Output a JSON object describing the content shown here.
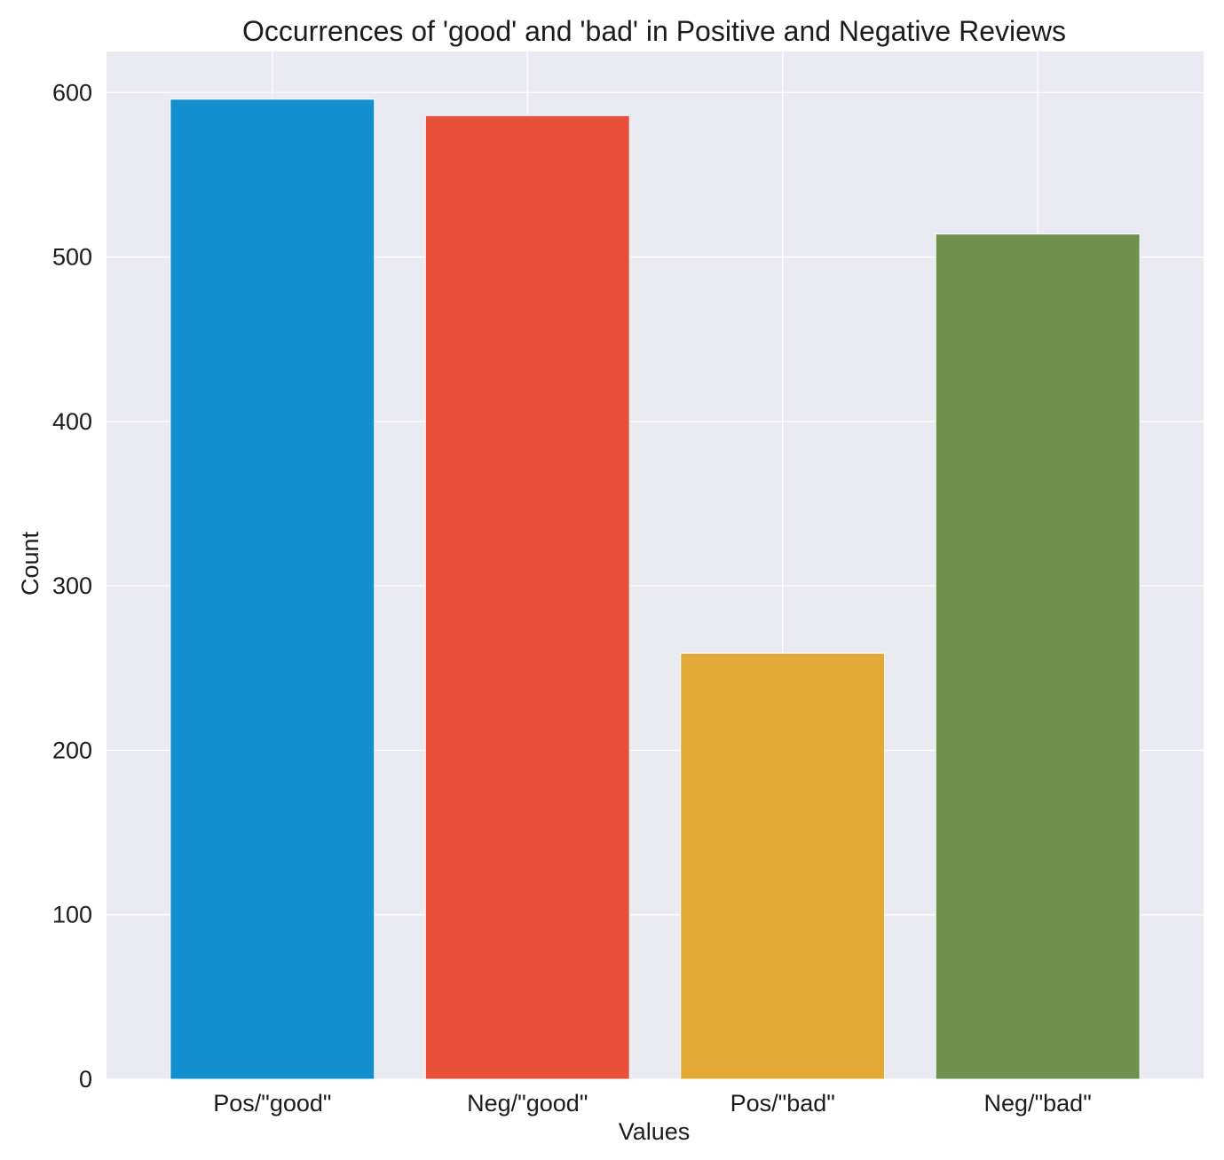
{
  "chart_data": {
    "type": "bar",
    "title": "Occurrences of 'good' and 'bad' in Positive and Negative Reviews",
    "xlabel": "Values",
    "ylabel": "Count",
    "categories": [
      "Pos/\"good\"",
      "Neg/\"good\"",
      "Pos/\"bad\"",
      "Neg/\"bad\""
    ],
    "values": [
      596,
      586,
      259,
      514
    ],
    "colors": [
      "#138fcf",
      "#e8503a",
      "#e3aa38",
      "#6f914e"
    ],
    "ylim": [
      0,
      625
    ],
    "yticks": [
      0,
      100,
      200,
      300,
      400,
      500,
      600
    ],
    "grid": true,
    "background": "#eaeaf2"
  }
}
